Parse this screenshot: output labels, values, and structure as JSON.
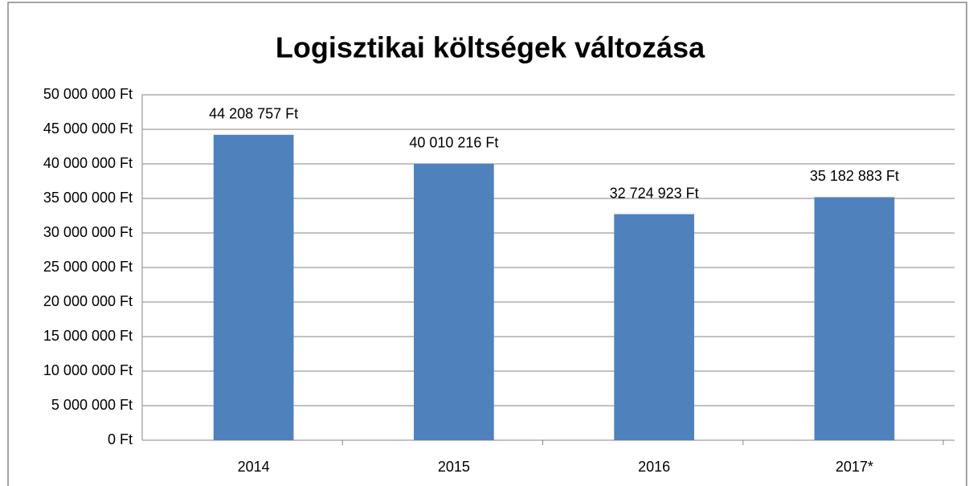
{
  "chart_data": {
    "type": "bar",
    "title": "Logisztikai költségek változása",
    "categories": [
      "2014",
      "2015",
      "2016",
      "2017*"
    ],
    "values": [
      44208757,
      40010216,
      32724923,
      35182883
    ],
    "value_labels": [
      "44 208 757 Ft",
      "40 010 216 Ft",
      "32 724 923 Ft",
      "35 182 883 Ft"
    ],
    "color": "#4f81bd",
    "ylim": [
      0,
      50000000
    ],
    "yticks": [
      {
        "value": 0,
        "label": "0 Ft"
      },
      {
        "value": 5000000,
        "label": "5 000 000 Ft"
      },
      {
        "value": 10000000,
        "label": "10 000 000 Ft"
      },
      {
        "value": 15000000,
        "label": "15 000 000 Ft"
      },
      {
        "value": 20000000,
        "label": "20 000 000 Ft"
      },
      {
        "value": 25000000,
        "label": "25 000 000 Ft"
      },
      {
        "value": 30000000,
        "label": "30 000 000 Ft"
      },
      {
        "value": 35000000,
        "label": "35 000 000 Ft"
      },
      {
        "value": 40000000,
        "label": "40 000 000 Ft"
      },
      {
        "value": 45000000,
        "label": "45 000 000 Ft"
      },
      {
        "value": 50000000,
        "label": "50 000 000 Ft"
      }
    ],
    "grid": true
  }
}
